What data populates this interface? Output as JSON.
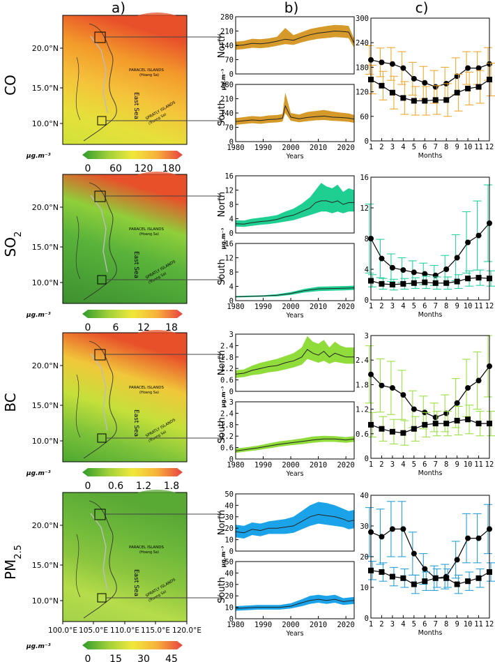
{
  "panel_labels": [
    "a)",
    "b)",
    "c)"
  ],
  "north_label": "North",
  "south_label": "South",
  "unit_label": "µg.m⁻³",
  "years_label": "Years",
  "months_label": "Months",
  "map": {
    "lat_ticks": [
      "20.0°N",
      "15.0°N",
      "10.0°N"
    ],
    "lon_ticks": [
      "100.0°E",
      "105.0°E",
      "110.0°E",
      "115.0°E",
      "120.0°E"
    ],
    "paracel_label": "PARACEL ISLANDS",
    "paracel_sub": "(Hoang Sa)",
    "spratly_label": "SPRATLY ISLANDS",
    "spratly_sub": "(Truong Sa)",
    "sea_label": "East Sea"
  },
  "rows": [
    {
      "key": "co",
      "label_main": "CO",
      "label_sub": "",
      "fill_color": "#d69a2b",
      "err_color": "#f0a830",
      "map_colors": [
        "#cfe33a",
        "#e6e03a",
        "#f5c23a",
        "#f39a2a",
        "#e8502a"
      ],
      "cbar_ticks": [
        "0",
        "60",
        "120",
        "180"
      ],
      "b_north_ticks": [
        "280",
        "210",
        "140",
        "70",
        "0"
      ],
      "b_south_ticks": [
        "280",
        "210",
        "140",
        "70",
        "0"
      ],
      "c_ticks": [
        "300",
        "240",
        "180",
        "120",
        "60",
        "0"
      ]
    },
    {
      "key": "so2",
      "label_main": "SO",
      "label_sub": "2",
      "fill_color": "#1fcf92",
      "err_color": "#22d2a0",
      "map_colors": [
        "#3f8f2f",
        "#4aa235",
        "#5ab33a",
        "#8fcf3a",
        "#e8502a"
      ],
      "cbar_ticks": [
        "0",
        "6",
        "12",
        "18"
      ],
      "b_north_ticks": [
        "16",
        "12",
        "8",
        "4",
        "0"
      ],
      "b_south_ticks": [
        "16",
        "12",
        "8",
        "4",
        "0"
      ],
      "c_ticks": [
        "16",
        "12",
        "8",
        "4",
        "0"
      ]
    },
    {
      "key": "bc",
      "label_main": "BC",
      "label_sub": "",
      "fill_color": "#8fdc3a",
      "err_color": "#9be045",
      "map_colors": [
        "#4fa832",
        "#7cc23a",
        "#c5e03a",
        "#f1c73a",
        "#e8502a"
      ],
      "cbar_ticks": [
        "0",
        "0.6",
        "1.2",
        "1.8"
      ],
      "b_north_ticks": [
        "3",
        "2.4",
        "1.8",
        "1.2",
        "0.6",
        "0"
      ],
      "b_south_ticks": [
        "3",
        "2.4",
        "1.8",
        "1.2",
        "0.6",
        "0"
      ],
      "c_ticks": [
        "3",
        "2.4",
        "1.8",
        "1.2",
        "0.6",
        "0"
      ]
    },
    {
      "key": "pm25",
      "label_main": "PM",
      "label_sub": "2.5",
      "fill_color": "#1aa3e8",
      "err_color": "#2aa0d8",
      "map_colors": [
        "#a2d24a",
        "#b6dc4a",
        "#8ac53e",
        "#6db83a",
        "#5aa935"
      ],
      "cbar_ticks": [
        "0",
        "15",
        "30",
        "45"
      ],
      "b_north_ticks": [
        "50",
        "40",
        "30",
        "20",
        "10",
        "0"
      ],
      "b_south_ticks": [
        "50",
        "40",
        "30",
        "20",
        "10",
        "0"
      ],
      "c_ticks": [
        "40",
        "30",
        "20",
        "10",
        "0"
      ]
    }
  ],
  "year_ticks": [
    "1980",
    "1990",
    "2000",
    "2010",
    "2020"
  ],
  "month_ticks": [
    "1",
    "2",
    "3",
    "4",
    "5",
    "6",
    "7",
    "8",
    "9",
    "10",
    "11",
    "12"
  ],
  "chart_data": [
    {
      "type": "area",
      "pollutant": "CO",
      "region": "North",
      "x_range": [
        1980,
        2023
      ],
      "ylim": [
        0,
        280
      ],
      "x": [
        1980,
        1983,
        1986,
        1989,
        1992,
        1995,
        1998,
        2001,
        2004,
        2007,
        2010,
        2013,
        2016,
        2019,
        2021,
        2023
      ],
      "mean": [
        138,
        142,
        150,
        148,
        152,
        160,
        170,
        165,
        180,
        192,
        200,
        205,
        210,
        208,
        205,
        150
      ],
      "lower": [
        118,
        122,
        128,
        126,
        130,
        138,
        146,
        142,
        155,
        165,
        172,
        176,
        180,
        178,
        175,
        128
      ],
      "upper": [
        158,
        162,
        172,
        170,
        174,
        182,
        225,
        190,
        205,
        220,
        228,
        235,
        240,
        238,
        235,
        172
      ]
    },
    {
      "type": "area",
      "pollutant": "CO",
      "region": "South",
      "x_range": [
        1980,
        2023
      ],
      "ylim": [
        0,
        280
      ],
      "x": [
        1980,
        1983,
        1986,
        1989,
        1992,
        1995,
        1997,
        1998,
        2000,
        2003,
        2006,
        2009,
        2012,
        2015,
        2018,
        2021,
        2023
      ],
      "mean": [
        98,
        102,
        106,
        103,
        108,
        110,
        115,
        175,
        120,
        112,
        118,
        122,
        125,
        120,
        118,
        115,
        110
      ],
      "lower": [
        82,
        86,
        90,
        87,
        92,
        94,
        98,
        140,
        102,
        95,
        100,
        104,
        106,
        102,
        100,
        97,
        92
      ],
      "upper": [
        115,
        120,
        125,
        122,
        128,
        130,
        135,
        240,
        140,
        132,
        145,
        150,
        155,
        148,
        142,
        138,
        130
      ]
    },
    {
      "type": "line",
      "pollutant": "CO",
      "series_names": [
        "North",
        "South"
      ],
      "x": [
        1,
        2,
        3,
        4,
        5,
        6,
        7,
        8,
        9,
        10,
        11,
        12
      ],
      "ylim": [
        0,
        300
      ],
      "north_mean": [
        198,
        192,
        188,
        178,
        152,
        142,
        132,
        140,
        158,
        178,
        178,
        188
      ],
      "north_err": [
        35,
        35,
        40,
        40,
        40,
        40,
        40,
        40,
        45,
        40,
        40,
        40
      ],
      "south_mean": [
        150,
        135,
        118,
        105,
        98,
        98,
        100,
        100,
        118,
        128,
        132,
        150
      ],
      "south_err": [
        35,
        35,
        40,
        40,
        35,
        35,
        35,
        40,
        45,
        40,
        40,
        40
      ]
    },
    {
      "type": "area",
      "pollutant": "SO2",
      "region": "North",
      "x_range": [
        1980,
        2023
      ],
      "ylim": [
        0,
        16
      ],
      "x": [
        1980,
        1983,
        1986,
        1989,
        1992,
        1995,
        1998,
        2001,
        2004,
        2007,
        2009,
        2011,
        2013,
        2015,
        2017,
        2019,
        2021,
        2023
      ],
      "mean": [
        2.6,
        2.5,
        2.9,
        3.2,
        3.4,
        3.8,
        4.5,
        5.0,
        6.0,
        7.0,
        8.5,
        9.0,
        9.0,
        8.5,
        9.0,
        8.0,
        8.5,
        8.5
      ],
      "lower": [
        1.8,
        1.7,
        2.0,
        2.3,
        2.5,
        2.8,
        3.2,
        3.6,
        4.3,
        5.0,
        5.5,
        6.0,
        6.0,
        5.5,
        6.0,
        5.5,
        6.0,
        6.0
      ],
      "upper": [
        3.6,
        3.5,
        4.0,
        4.3,
        4.6,
        5.0,
        6.0,
        6.8,
        8.2,
        10.0,
        12.0,
        14.0,
        13.0,
        12.5,
        13.5,
        11.5,
        12.5,
        12.0
      ]
    },
    {
      "type": "area",
      "pollutant": "SO2",
      "region": "South",
      "x_range": [
        1980,
        2023
      ],
      "ylim": [
        0,
        16
      ],
      "x": [
        1980,
        1985,
        1990,
        1995,
        2000,
        2005,
        2010,
        2015,
        2020,
        2023
      ],
      "mean": [
        1.1,
        1.2,
        1.3,
        1.5,
        2.0,
        2.8,
        3.3,
        3.4,
        3.5,
        3.6
      ],
      "lower": [
        0.9,
        1.0,
        1.1,
        1.2,
        1.6,
        2.3,
        2.7,
        2.8,
        2.9,
        3.0
      ],
      "upper": [
        1.3,
        1.4,
        1.5,
        1.8,
        2.4,
        3.3,
        3.9,
        4.0,
        4.1,
        4.2
      ]
    },
    {
      "type": "line",
      "pollutant": "SO2",
      "series_names": [
        "North",
        "South"
      ],
      "x": [
        1,
        2,
        3,
        4,
        5,
        6,
        7,
        8,
        9,
        10,
        11,
        12
      ],
      "ylim": [
        0,
        16
      ],
      "north_mean": [
        8.0,
        5.4,
        4.2,
        3.9,
        3.6,
        3.4,
        3.2,
        4.0,
        5.5,
        7.5,
        8.4,
        10.0
      ],
      "north_err": [
        4.5,
        2.5,
        1.8,
        1.6,
        1.5,
        1.4,
        1.3,
        1.8,
        3.0,
        4.0,
        4.5,
        5.0
      ],
      "south_mean": [
        2.5,
        2.1,
        2.0,
        2.1,
        2.2,
        2.3,
        2.2,
        2.2,
        2.4,
        2.8,
        2.9,
        2.8
      ],
      "south_err": [
        0.8,
        0.7,
        0.7,
        0.7,
        0.7,
        0.8,
        0.8,
        0.8,
        0.9,
        1.0,
        1.0,
        1.0
      ]
    },
    {
      "type": "area",
      "pollutant": "BC",
      "region": "North",
      "x_range": [
        1980,
        2023
      ],
      "ylim": [
        0,
        3
      ],
      "x": [
        1980,
        1983,
        1986,
        1989,
        1992,
        1995,
        1998,
        2001,
        2004,
        2006,
        2008,
        2010,
        2012,
        2014,
        2016,
        2018,
        2020,
        2023
      ],
      "mean": [
        0.9,
        0.95,
        1.1,
        1.2,
        1.3,
        1.35,
        1.5,
        1.6,
        1.8,
        2.2,
        2.0,
        1.9,
        2.1,
        1.8,
        2.0,
        1.9,
        1.8,
        1.8
      ],
      "lower": [
        0.7,
        0.75,
        0.85,
        0.9,
        1.0,
        1.05,
        1.15,
        1.25,
        1.4,
        1.7,
        1.6,
        1.5,
        1.6,
        1.45,
        1.55,
        1.5,
        1.45,
        1.45
      ],
      "upper": [
        1.1,
        1.15,
        1.35,
        1.5,
        1.6,
        1.7,
        1.85,
        2.0,
        2.3,
        2.9,
        2.6,
        2.5,
        2.7,
        2.3,
        2.6,
        2.4,
        2.3,
        2.3
      ]
    },
    {
      "type": "area",
      "pollutant": "BC",
      "region": "South",
      "x_range": [
        1980,
        2023
      ],
      "ylim": [
        0,
        3
      ],
      "x": [
        1980,
        1984,
        1988,
        1992,
        1996,
        2000,
        2004,
        2008,
        2012,
        2016,
        2020,
        2023
      ],
      "mean": [
        0.42,
        0.5,
        0.58,
        0.68,
        0.78,
        0.85,
        0.92,
        1.0,
        1.05,
        1.05,
        1.0,
        1.05
      ],
      "lower": [
        0.32,
        0.4,
        0.47,
        0.56,
        0.65,
        0.72,
        0.78,
        0.85,
        0.9,
        0.9,
        0.85,
        0.9
      ],
      "upper": [
        0.55,
        0.62,
        0.7,
        0.82,
        0.93,
        1.0,
        1.08,
        1.18,
        1.22,
        1.2,
        1.15,
        1.2
      ]
    },
    {
      "type": "line",
      "pollutant": "BC",
      "series_names": [
        "North",
        "South"
      ],
      "x": [
        1,
        2,
        3,
        4,
        5,
        6,
        7,
        8,
        9,
        10,
        11,
        12
      ],
      "ylim": [
        0,
        3
      ],
      "north_mean": [
        2.05,
        1.78,
        1.72,
        1.55,
        1.2,
        1.12,
        1.0,
        1.1,
        1.35,
        1.72,
        1.9,
        2.25
      ],
      "north_err": [
        0.7,
        0.65,
        0.65,
        0.6,
        0.45,
        0.4,
        0.35,
        0.45,
        0.6,
        0.7,
        0.7,
        0.75
      ],
      "south_mean": [
        0.82,
        0.72,
        0.65,
        0.62,
        0.72,
        0.82,
        0.85,
        0.85,
        0.92,
        0.95,
        0.85,
        0.85
      ],
      "south_err": [
        0.3,
        0.3,
        0.3,
        0.3,
        0.3,
        0.3,
        0.3,
        0.3,
        0.35,
        0.35,
        0.3,
        0.3
      ]
    },
    {
      "type": "area",
      "pollutant": "PM2.5",
      "region": "North",
      "x_range": [
        1980,
        2023
      ],
      "ylim": [
        0,
        50
      ],
      "x": [
        1980,
        1983,
        1986,
        1989,
        1992,
        1995,
        1998,
        2001,
        2004,
        2007,
        2010,
        2013,
        2016,
        2019,
        2021,
        2023
      ],
      "mean": [
        17,
        16,
        19,
        18,
        20,
        20,
        21,
        22,
        26,
        30,
        32,
        31,
        30,
        28,
        26,
        27
      ],
      "lower": [
        12,
        11,
        14,
        13,
        15,
        15,
        15,
        16,
        19,
        22,
        24,
        23,
        22,
        21,
        19,
        20
      ],
      "upper": [
        23,
        22,
        25,
        24,
        26,
        27,
        28,
        30,
        35,
        40,
        43,
        42,
        40,
        37,
        35,
        36
      ]
    },
    {
      "type": "area",
      "pollutant": "PM2.5",
      "region": "South",
      "x_range": [
        1980,
        2023
      ],
      "ylim": [
        0,
        50
      ],
      "x": [
        1980,
        1984,
        1988,
        1992,
        1996,
        2000,
        2004,
        2007,
        2010,
        2013,
        2016,
        2019,
        2023
      ],
      "mean": [
        9,
        9.5,
        10,
        10,
        10,
        11,
        14,
        16,
        17,
        16,
        17,
        15,
        16
      ],
      "lower": [
        7,
        7.5,
        8,
        8,
        8,
        9,
        11,
        13,
        14,
        13,
        14,
        12,
        13
      ],
      "upper": [
        11,
        11.5,
        12,
        12,
        12,
        13.5,
        17,
        20,
        21,
        20,
        21,
        18,
        19
      ]
    },
    {
      "type": "line",
      "pollutant": "PM2.5",
      "series_names": [
        "North",
        "South"
      ],
      "x": [
        1,
        2,
        3,
        4,
        5,
        6,
        7,
        8,
        9,
        10,
        11,
        12
      ],
      "ylim": [
        0,
        40
      ],
      "north_mean": [
        28,
        26.5,
        29,
        29,
        21,
        16,
        13,
        13.5,
        19,
        26,
        26,
        29
      ],
      "north_err": [
        8,
        9,
        9,
        9,
        7,
        5,
        4,
        4,
        6,
        8,
        8,
        8
      ],
      "south_mean": [
        15.5,
        15,
        13.5,
        13,
        11,
        12,
        13,
        13,
        11,
        12,
        13,
        15
      ],
      "south_err": [
        3,
        3,
        3,
        3,
        3,
        3,
        3,
        3,
        3,
        3,
        3,
        3
      ]
    }
  ]
}
